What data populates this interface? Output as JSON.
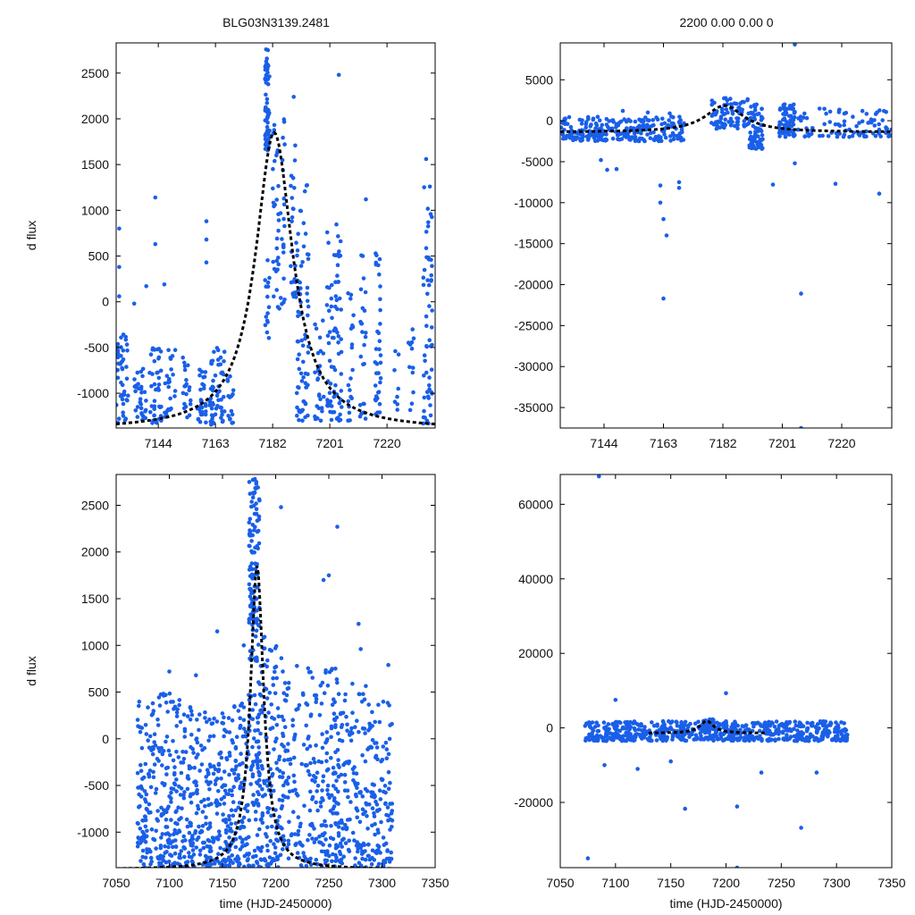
{
  "figure": {
    "title_left": "BLG03N3139.2481",
    "title_right": "2200  0.00  0.00  0",
    "colors": {
      "points": "#1a5fe8",
      "model": "#000000",
      "axes": "#000000"
    }
  },
  "chart_data": [
    {
      "type": "scatter",
      "panel": "top-left",
      "title": "BLG03N3139.2481",
      "xlabel": "",
      "ylabel": "d flux",
      "xlim": [
        7130,
        7236
      ],
      "ylim": [
        -1380,
        2830
      ],
      "xticks": [
        7144,
        7163,
        7182,
        7201,
        7220
      ],
      "yticks": [
        -1000,
        -500,
        0,
        500,
        1000,
        1500,
        2000,
        2500
      ],
      "model": {
        "baseline": -1400,
        "peak_t": 7182.5,
        "peak_flux": 1850,
        "width": 7.5
      },
      "point_clusters": [
        {
          "t": [
            7130,
            7134
          ],
          "y": [
            -1350,
            -300
          ],
          "n": 50
        },
        {
          "t": [
            7136,
            7140
          ],
          "y": [
            -1350,
            -700
          ],
          "n": 30
        },
        {
          "t": [
            7141,
            7145
          ],
          "y": [
            -1350,
            -500
          ],
          "n": 40
        },
        {
          "t": [
            7146,
            7150
          ],
          "y": [
            -1300,
            -500
          ],
          "n": 25
        },
        {
          "t": [
            7152,
            7155
          ],
          "y": [
            -1300,
            -600
          ],
          "n": 20
        },
        {
          "t": [
            7157,
            7160
          ],
          "y": [
            -1350,
            -700
          ],
          "n": 30
        },
        {
          "t": [
            7161,
            7166
          ],
          "y": [
            -1350,
            -500
          ],
          "n": 55
        },
        {
          "t": [
            7167,
            7169
          ],
          "y": [
            -1350,
            -800
          ],
          "n": 15
        },
        {
          "t": [
            7179.5,
            7181
          ],
          "y": [
            1650,
            2800
          ],
          "n": 70
        },
        {
          "t": [
            7179.5,
            7181
          ],
          "y": [
            -400,
            600
          ],
          "n": 15
        },
        {
          "t": [
            7182,
            7186
          ],
          "y": [
            -100,
            2000
          ],
          "n": 50
        },
        {
          "t": [
            7188,
            7190
          ],
          "y": [
            0,
            1900
          ],
          "n": 25
        },
        {
          "t": [
            7190,
            7194
          ],
          "y": [
            -1300,
            1400
          ],
          "n": 70
        },
        {
          "t": [
            7196,
            7199
          ],
          "y": [
            -1300,
            -100
          ],
          "n": 25
        },
        {
          "t": [
            7200,
            7205
          ],
          "y": [
            -1300,
            850
          ],
          "n": 80
        },
        {
          "t": [
            7207,
            7209
          ],
          "y": [
            -1300,
            400
          ],
          "n": 20
        },
        {
          "t": [
            7211,
            7213
          ],
          "y": [
            -1300,
            550
          ],
          "n": 25
        },
        {
          "t": [
            7216,
            7218
          ],
          "y": [
            -1300,
            600
          ],
          "n": 35
        },
        {
          "t": [
            7222,
            7224
          ],
          "y": [
            -1200,
            0
          ],
          "n": 8
        },
        {
          "t": [
            7227,
            7229
          ],
          "y": [
            -1200,
            -300
          ],
          "n": 12
        },
        {
          "t": [
            7232,
            7235
          ],
          "y": [
            -1350,
            1300
          ],
          "n": 55
        }
      ],
      "points": [
        [
          7131,
          800
        ],
        [
          7131,
          380
        ],
        [
          7131,
          60
        ],
        [
          7136,
          -20
        ],
        [
          7140,
          170
        ],
        [
          7143,
          1140
        ],
        [
          7143,
          630
        ],
        [
          7146,
          190
        ],
        [
          7160,
          880
        ],
        [
          7160,
          680
        ],
        [
          7160,
          430
        ],
        [
          7189,
          2240
        ],
        [
          7186,
          1720
        ],
        [
          7204,
          2480
        ],
        [
          7213,
          1120
        ],
        [
          7233,
          1560
        ],
        [
          7198,
          -1300
        ]
      ]
    },
    {
      "type": "scatter",
      "panel": "top-right",
      "title": "2200  0.00  0.00  0",
      "xlabel": "",
      "ylabel": "",
      "xlim": [
        7130,
        7236
      ],
      "ylim": [
        -37500,
        9500
      ],
      "xticks": [
        7144,
        7163,
        7182,
        7201,
        7220
      ],
      "yticks": [
        -35000,
        -30000,
        -25000,
        -20000,
        -15000,
        -10000,
        -5000,
        0,
        5000
      ],
      "model": {
        "baseline": -1400,
        "peak_t": 7182.5,
        "peak_flux": 1850,
        "width": 7.5
      },
      "point_clusters": [
        {
          "t": [
            7130,
            7170
          ],
          "y": [
            -2500,
            500
          ],
          "n": 260
        },
        {
          "t": [
            7178,
            7190
          ],
          "y": [
            -1000,
            2800
          ],
          "n": 80
        },
        {
          "t": [
            7190,
            7195
          ],
          "y": [
            -3500,
            2000
          ],
          "n": 70
        },
        {
          "t": [
            7200,
            7205
          ],
          "y": [
            -2000,
            2000
          ],
          "n": 80
        },
        {
          "t": [
            7206,
            7236
          ],
          "y": [
            -2000,
            1500
          ],
          "n": 90
        }
      ],
      "points": [
        [
          7143,
          -4800
        ],
        [
          7145,
          -6000
        ],
        [
          7148,
          -5900
        ],
        [
          7162,
          -7900
        ],
        [
          7162,
          -10000
        ],
        [
          7163,
          -12000
        ],
        [
          7164,
          -14000
        ],
        [
          7163,
          -21700
        ],
        [
          7168,
          -7500
        ],
        [
          7168,
          -8200
        ],
        [
          7198,
          -7800
        ],
        [
          7205,
          -5200
        ],
        [
          7207,
          -21100
        ],
        [
          7207,
          -37500
        ],
        [
          7205,
          9300
        ],
        [
          7218,
          -7700
        ],
        [
          7232,
          -8900
        ],
        [
          7150,
          1200
        ],
        [
          7158,
          1000
        ],
        [
          7165,
          900
        ]
      ]
    },
    {
      "type": "scatter",
      "panel": "bottom-left",
      "title": "",
      "xlabel": "time (HJD-2450000)",
      "ylabel": "d flux",
      "xlim": [
        7050,
        7350
      ],
      "ylim": [
        -1380,
        2830
      ],
      "xticks": [
        7050,
        7100,
        7150,
        7200,
        7250,
        7300,
        7350
      ],
      "yticks": [
        -1000,
        -500,
        0,
        500,
        1000,
        1500,
        2000,
        2500
      ],
      "model": {
        "baseline": -1400,
        "peak_t": 7182.5,
        "peak_flux": 1850,
        "width": 7.5
      },
      "point_clusters": [
        {
          "t": [
            7070,
            7090
          ],
          "y": [
            -1380,
            400
          ],
          "n": 110
        },
        {
          "t": [
            7090,
            7110
          ],
          "y": [
            -1380,
            500
          ],
          "n": 120
        },
        {
          "t": [
            7110,
            7135
          ],
          "y": [
            -1380,
            350
          ],
          "n": 130
        },
        {
          "t": [
            7135,
            7160
          ],
          "y": [
            -1380,
            300
          ],
          "n": 150
        },
        {
          "t": [
            7160,
            7175
          ],
          "y": [
            -1380,
            500
          ],
          "n": 90
        },
        {
          "t": [
            7175,
            7185
          ],
          "y": [
            1200,
            2800
          ],
          "n": 110
        },
        {
          "t": [
            7175,
            7190
          ],
          "y": [
            -1380,
            1200
          ],
          "n": 120
        },
        {
          "t": [
            7190,
            7215
          ],
          "y": [
            -1380,
            1000
          ],
          "n": 140
        },
        {
          "t": [
            7215,
            7230
          ],
          "y": [
            -1380,
            500
          ],
          "n": 50
        },
        {
          "t": [
            7230,
            7260
          ],
          "y": [
            -1380,
            800
          ],
          "n": 170
        },
        {
          "t": [
            7260,
            7285
          ],
          "y": [
            -1380,
            600
          ],
          "n": 120
        },
        {
          "t": [
            7285,
            7310
          ],
          "y": [
            -1380,
            400
          ],
          "n": 120
        }
      ],
      "points": [
        [
          7100,
          720
        ],
        [
          7125,
          680
        ],
        [
          7145,
          1150
        ],
        [
          7170,
          1000
        ],
        [
          7205,
          2480
        ],
        [
          7258,
          2270
        ],
        [
          7250,
          1750
        ],
        [
          7245,
          1700
        ],
        [
          7278,
          1230
        ],
        [
          7306,
          790
        ],
        [
          7220,
          780
        ],
        [
          7280,
          960
        ]
      ]
    },
    {
      "type": "scatter",
      "panel": "bottom-right",
      "title": "",
      "xlabel": "time (HJD-2450000)",
      "ylabel": "",
      "xlim": [
        7050,
        7350
      ],
      "ylim": [
        -37500,
        68000
      ],
      "xticks": [
        7050,
        7100,
        7150,
        7200,
        7250,
        7300,
        7350
      ],
      "yticks": [
        -20000,
        0,
        20000,
        40000,
        60000
      ],
      "model": {
        "baseline": -1400,
        "peak_t": 7182.5,
        "peak_flux": 1850,
        "width": 7.5,
        "t_range": [
          7130,
          7236
        ]
      },
      "point_clusters": [
        {
          "t": [
            7072,
            7310
          ],
          "y": [
            -3500,
            1800
          ],
          "n": 650
        },
        {
          "t": [
            7178,
            7190
          ],
          "y": [
            -500,
            2800
          ],
          "n": 40
        }
      ],
      "points": [
        [
          7085,
          67500
        ],
        [
          7075,
          -35000
        ],
        [
          7100,
          7500
        ],
        [
          7200,
          9300
        ],
        [
          7210,
          -21100
        ],
        [
          7210,
          -37500
        ],
        [
          7163,
          -21700
        ],
        [
          7268,
          -26800
        ],
        [
          7232,
          -12000
        ],
        [
          7120,
          -11000
        ],
        [
          7150,
          -9000
        ],
        [
          7282,
          -12000
        ],
        [
          7090,
          -10000
        ]
      ]
    }
  ]
}
